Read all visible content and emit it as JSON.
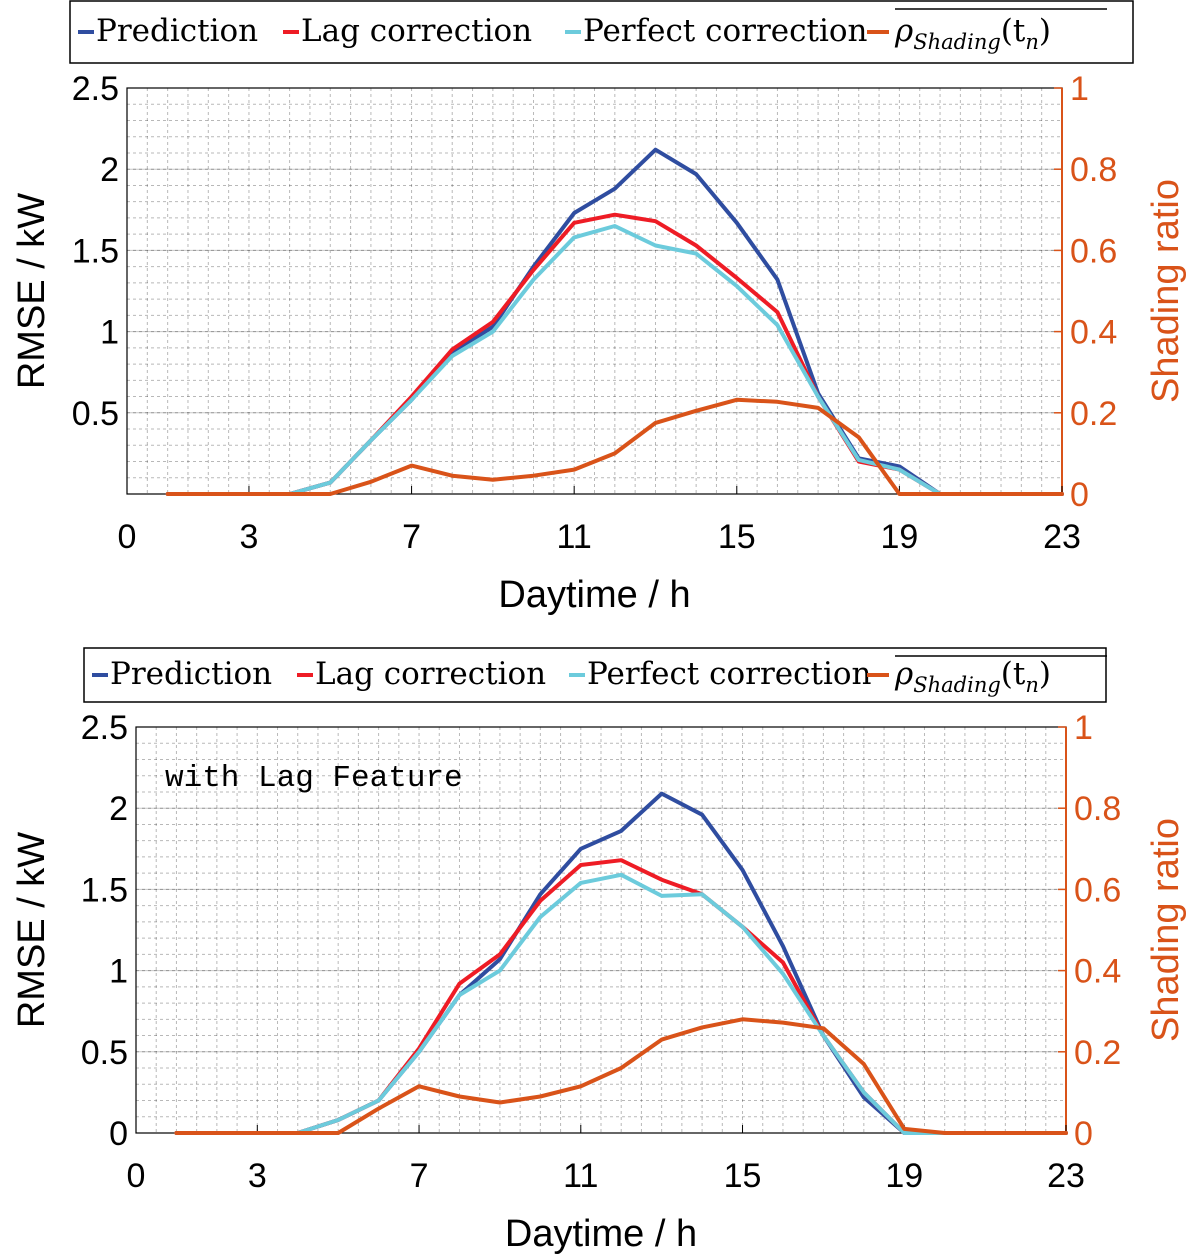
{
  "colors": {
    "prediction": "#2f4da0",
    "lag": "#ee1c25",
    "perfect": "#6ccbdc",
    "shading": "#d95319",
    "axis": "#000000",
    "right_axis": "#d95319"
  },
  "chart_data": [
    {
      "type": "line",
      "annotation": "",
      "xlabel": "Daytime / h",
      "ylabel": "RMSE / kW",
      "ylabel_right": "Shading ratio",
      "xlim": [
        0,
        23
      ],
      "ylim": [
        0,
        2.5
      ],
      "ylim_right": [
        0,
        1
      ],
      "xticks": [
        "0",
        "3",
        "7",
        "11",
        "15",
        "19",
        "23"
      ],
      "yticks": [
        "0.5",
        "1",
        "1.5",
        "2",
        "2.5"
      ],
      "yticks_right": [
        "0",
        "0.2",
        "0.4",
        "0.6",
        "0.8",
        "1"
      ],
      "legend": {
        "placement": "top",
        "entries": [
          "Prediction",
          "Lag correction",
          "Perfect correction"
        ],
        "shading_label_main": "ρ",
        "shading_label_sub": "Shading",
        "shading_label_tail": "(t",
        "shading_label_sub2": "n",
        "shading_label_end": ")"
      },
      "x": [
        1,
        2,
        3,
        4,
        5,
        6,
        7,
        8,
        9,
        10,
        11,
        12,
        13,
        14,
        15,
        16,
        17,
        18,
        19,
        20,
        21,
        22,
        23
      ],
      "series": [
        {
          "name": "Prediction",
          "axis": "left",
          "values": [
            0,
            0,
            0,
            0,
            0.07,
            0.33,
            0.58,
            0.87,
            1.03,
            1.4,
            1.73,
            1.88,
            2.12,
            1.97,
            1.67,
            1.32,
            0.62,
            0.22,
            0.17,
            0,
            0,
            0,
            0
          ]
        },
        {
          "name": "Lag correction",
          "axis": "left",
          "values": [
            0,
            0,
            0,
            0,
            0.07,
            0.33,
            0.6,
            0.89,
            1.06,
            1.38,
            1.67,
            1.72,
            1.68,
            1.53,
            1.33,
            1.12,
            0.6,
            0.2,
            0.15,
            0,
            0,
            0,
            0
          ]
        },
        {
          "name": "Perfect correction",
          "axis": "left",
          "values": [
            0,
            0,
            0,
            0,
            0.07,
            0.33,
            0.58,
            0.85,
            1.0,
            1.32,
            1.58,
            1.65,
            1.53,
            1.48,
            1.28,
            1.04,
            0.6,
            0.21,
            0.15,
            0,
            0,
            0,
            0
          ]
        },
        {
          "name": "Shading ratio",
          "axis": "right",
          "values": [
            0,
            0,
            0,
            0,
            0,
            0.03,
            0.07,
            0.045,
            0.035,
            0.045,
            0.06,
            0.1,
            0.175,
            0.205,
            0.232,
            0.227,
            0.212,
            0.14,
            0,
            0,
            0,
            0,
            0
          ]
        }
      ]
    },
    {
      "type": "line",
      "annotation": "with Lag Feature",
      "xlabel": "Daytime / h",
      "ylabel": "RMSE / kW",
      "ylabel_right": "Shading ratio",
      "xlim": [
        0,
        23
      ],
      "ylim": [
        0,
        2.5
      ],
      "ylim_right": [
        0,
        1
      ],
      "xticks": [
        "0",
        "3",
        "7",
        "11",
        "15",
        "19",
        "23"
      ],
      "yticks": [
        "0",
        "0.5",
        "1",
        "1.5",
        "2",
        "2.5"
      ],
      "yticks_right": [
        "0",
        "0.2",
        "0.4",
        "0.6",
        "0.8",
        "1"
      ],
      "legend": {
        "placement": "top",
        "entries": [
          "Prediction",
          "Lag correction",
          "Perfect correction"
        ],
        "shading_label_main": "ρ",
        "shading_label_sub": "Shading",
        "shading_label_tail": "(t",
        "shading_label_sub2": "n",
        "shading_label_end": ")"
      },
      "x": [
        1,
        2,
        3,
        4,
        5,
        6,
        7,
        8,
        9,
        10,
        11,
        12,
        13,
        14,
        15,
        16,
        17,
        18,
        19,
        20,
        21,
        22,
        23
      ],
      "series": [
        {
          "name": "Prediction",
          "axis": "left",
          "values": [
            0,
            0,
            0,
            0,
            0.08,
            0.2,
            0.5,
            0.85,
            1.07,
            1.47,
            1.75,
            1.86,
            2.09,
            1.96,
            1.62,
            1.15,
            0.6,
            0.22,
            0,
            0,
            0,
            0,
            0
          ]
        },
        {
          "name": "Lag correction",
          "axis": "left",
          "values": [
            0,
            0,
            0,
            0,
            0.08,
            0.2,
            0.52,
            0.92,
            1.1,
            1.43,
            1.65,
            1.68,
            1.56,
            1.47,
            1.27,
            1.05,
            0.6,
            0.25,
            0,
            0,
            0,
            0,
            0
          ]
        },
        {
          "name": "Perfect correction",
          "axis": "left",
          "values": [
            0,
            0,
            0,
            0,
            0.08,
            0.2,
            0.5,
            0.85,
            1.0,
            1.33,
            1.54,
            1.59,
            1.46,
            1.47,
            1.27,
            0.98,
            0.6,
            0.25,
            0,
            0,
            0,
            0,
            0
          ]
        },
        {
          "name": "Shading ratio",
          "axis": "right",
          "values": [
            0,
            0,
            0,
            0,
            0,
            0.06,
            0.115,
            0.09,
            0.075,
            0.09,
            0.115,
            0.16,
            0.23,
            0.26,
            0.28,
            0.272,
            0.258,
            0.17,
            0.01,
            0,
            0,
            0,
            0
          ]
        }
      ]
    }
  ]
}
